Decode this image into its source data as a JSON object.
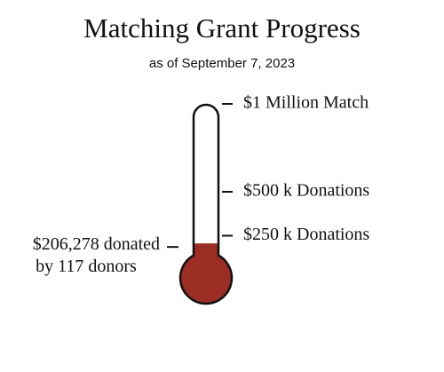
{
  "chart_data": {
    "type": "thermometer",
    "title": "Matching Grant Progress",
    "subtitle": "as of September 7, 2023",
    "ylim": [
      0,
      1000000
    ],
    "yticks": [
      {
        "value": 250000,
        "label": "$250 k Donations"
      },
      {
        "value": 500000,
        "label": "$500 k Donations"
      },
      {
        "value": 1000000,
        "label": "$1 Million Match"
      }
    ],
    "values": [
      206278
    ],
    "value_labels": [
      "$206,278 donated"
    ],
    "annotation": "by 117 donors",
    "color": "#9b2d25"
  }
}
